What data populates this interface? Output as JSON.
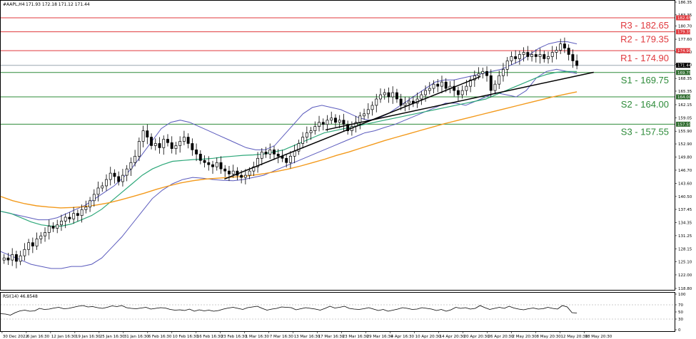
{
  "header": {
    "symbol": "#AAPL,H4",
    "ohlc": "171.93 172.18 171.12 171.44"
  },
  "rsi_header": "RSI(14) 46.8548",
  "colors": {
    "resistance": "#e0393e",
    "support": "#2e8b3a",
    "bollinger": "#5b5bbd",
    "ma_green": "#2ea87a",
    "ma_orange": "#f39a1c",
    "candle": "#000000",
    "trendline": "#000000",
    "rsi_line": "#000000",
    "axis_tag_red": "#e0393e",
    "axis_tag_green": "#2e6b2e",
    "axis_tag_black": "#000000"
  },
  "chart_data": {
    "type": "candlestick",
    "ylim": [
      118.8,
      186.35
    ],
    "y_ticks": [
      "186.35",
      "183.35",
      "180.70",
      "177.60",
      "174.60",
      "171.60",
      "168.35",
      "165.35",
      "162.15",
      "159.05",
      "155.90",
      "152.90",
      "149.80",
      "146.70",
      "143.60",
      "140.50",
      "137.45",
      "134.35",
      "131.25",
      "128.15",
      "125.10",
      "122.00",
      "118.80"
    ],
    "x_ticks": [
      "30 Dec 2022",
      "6 Jan 16:30",
      "12 Jan 16:30",
      "19 Jan 16:30",
      "25 Jan 16:30",
      "31 Jan 16:30",
      "6 Feb 16:30",
      "10 Feb 16:30",
      "16 Feb 16:30",
      "23 Feb 16:30",
      "1 Mar 16:30",
      "7 Mar 16:30",
      "13 Mar 16:30",
      "17 Mar 16:30",
      "23 Mar 16:30",
      "29 Mar 16:30",
      "4 Apr 16:30",
      "10 Apr 20:30",
      "14 Apr 20:30",
      "20 Apr 20:30",
      "26 Apr 20:30",
      "2 May 20:30",
      "8 May 20:30",
      "12 May 20:30",
      "18 May 20:30"
    ],
    "levels": [
      {
        "name": "R3",
        "text": "R3 - 182.65",
        "value": 182.65,
        "tag": "182.65",
        "kind": "resistance"
      },
      {
        "name": "R2",
        "text": "R2 - 179.35",
        "value": 179.35,
        "tag": "179.35",
        "kind": "resistance"
      },
      {
        "name": "R1",
        "text": "R1 - 174.90",
        "value": 174.9,
        "tag": "174.90",
        "kind": "resistance"
      },
      {
        "name": "S1",
        "text": "S1 - 169.75",
        "value": 169.75,
        "tag": "169.75",
        "kind": "support"
      },
      {
        "name": "S2",
        "text": "S2 - 164.00",
        "value": 164.0,
        "tag": "164.00",
        "kind": "support"
      },
      {
        "name": "S3",
        "text": "S3 - 157.55",
        "value": 157.55,
        "tag": "157.55",
        "kind": "support"
      }
    ],
    "current_price": {
      "value": 171.44,
      "tag": "171.44"
    },
    "close_series": [
      126.0,
      125.5,
      126.8,
      125.2,
      126.5,
      128.0,
      129.6,
      128.8,
      130.5,
      131.2,
      132.0,
      133.5,
      133.0,
      133.8,
      134.7,
      135.6,
      135.2,
      136.5,
      136.0,
      137.4,
      138.0,
      139.5,
      141.0,
      142.5,
      143.0,
      144.5,
      146.0,
      145.2,
      144.0,
      145.5,
      147.0,
      148.5,
      150.0,
      153.5,
      156.0,
      154.5,
      152.5,
      153.0,
      152.0,
      154.0,
      153.2,
      151.8,
      152.5,
      153.5,
      154.5,
      153.0,
      151.5,
      150.5,
      149.0,
      148.5,
      148.0,
      147.5,
      148.5,
      147.0,
      146.5,
      145.8,
      146.5,
      145.5,
      145.0,
      145.5,
      146.5,
      147.5,
      149.5,
      151.0,
      150.5,
      151.5,
      150.5,
      150.0,
      149.5,
      148.5,
      150.0,
      151.2,
      153.0,
      154.5,
      155.5,
      156.0,
      157.0,
      158.0,
      157.5,
      158.5,
      159.0,
      158.0,
      158.5,
      157.5,
      156.0,
      157.0,
      158.0,
      159.5,
      160.0,
      161.0,
      162.0,
      163.5,
      164.5,
      165.0,
      164.0,
      165.0,
      163.5,
      162.0,
      162.5,
      163.0,
      162.5,
      163.5,
      164.5,
      165.5,
      166.0,
      167.0,
      166.5,
      167.5,
      166.0,
      166.5,
      165.5,
      164.5,
      165.5,
      166.5,
      168.0,
      169.0,
      169.5,
      170.0,
      169.0,
      165.5,
      167.0,
      169.0,
      170.5,
      172.5,
      173.5,
      173.0,
      174.0,
      174.5,
      173.5,
      174.0,
      173.5,
      174.0,
      173.0,
      173.5,
      174.5,
      175.0,
      176.5,
      175.5,
      174.0,
      172.5,
      171.4
    ],
    "bollinger_upper": [
      137.0,
      136.5,
      136.0,
      135.5,
      135.0,
      135.0,
      135.5,
      136.5,
      137.5,
      138.5,
      140.0,
      141.5,
      143.0,
      145.0,
      147.5,
      150.5,
      153.5,
      156.5,
      158.0,
      158.5,
      158.0,
      157.0,
      156.0,
      155.0,
      154.0,
      153.0,
      152.0,
      151.5,
      151.5,
      152.5,
      155.0,
      157.5,
      160.0,
      161.5,
      162.0,
      161.5,
      161.0,
      160.0,
      159.0,
      158.5,
      159.0,
      160.0,
      161.5,
      163.0,
      164.5,
      166.0,
      167.5,
      168.0,
      168.0,
      168.5,
      169.0,
      169.5,
      170.0,
      170.5,
      171.5,
      172.5,
      174.0,
      175.5,
      176.5,
      177.0,
      177.0,
      176.5
    ],
    "bollinger_lower": [
      127.5,
      126.5,
      125.5,
      124.5,
      124.0,
      123.5,
      123.5,
      124.0,
      124.0,
      124.5,
      126.0,
      128.5,
      131.0,
      134.0,
      137.0,
      140.0,
      142.0,
      143.5,
      144.5,
      145.0,
      144.8,
      144.5,
      144.3,
      144.2,
      144.5,
      145.0,
      145.5,
      146.5,
      147.5,
      148.5,
      149.5,
      150.5,
      151.5,
      152.5,
      153.5,
      154.5,
      155.5,
      156.0,
      156.8,
      157.5,
      158.5,
      159.5,
      160.5,
      161.5,
      162.5,
      162.5,
      162.0,
      163.0,
      164.0,
      165.0,
      164.5,
      164.0,
      165.5,
      168.5,
      170.0,
      170.5,
      170.0,
      169.5
    ],
    "ma_green": [
      137.0,
      136.5,
      135.5,
      134.5,
      133.8,
      133.5,
      133.5,
      134.0,
      135.0,
      136.0,
      137.5,
      139.5,
      141.5,
      143.5,
      145.5,
      147.0,
      148.0,
      148.8,
      149.0,
      149.2,
      149.3,
      149.5,
      149.8,
      150.0,
      150.2,
      150.3,
      150.5,
      151.0,
      151.5,
      152.5,
      153.5,
      154.5,
      155.5,
      156.0,
      156.5,
      157.0,
      157.5,
      158.0,
      158.5,
      159.0,
      159.5,
      160.0,
      160.5,
      161.0,
      161.5,
      162.0,
      162.5,
      163.0,
      163.5,
      164.5,
      165.5,
      166.5,
      167.5,
      168.5,
      169.3,
      169.8,
      170.0,
      170.0
    ],
    "ma_orange": [
      140.5,
      139.5,
      138.8,
      138.3,
      138.0,
      137.8,
      137.9,
      138.1,
      138.5,
      139.0,
      139.7,
      140.5,
      141.3,
      142.2,
      143.0,
      143.7,
      144.2,
      144.6,
      144.8,
      145.0,
      145.2,
      145.5,
      145.9,
      146.4,
      147.0,
      147.7,
      148.5,
      149.3,
      150.2,
      151.0,
      151.9,
      152.8,
      153.7,
      154.5,
      155.3,
      156.1,
      156.9,
      157.7,
      158.4,
      159.1,
      159.8,
      160.5,
      161.2,
      161.9,
      162.6,
      163.3,
      164.0,
      164.6,
      165.2
    ],
    "trendlines": [
      {
        "from": [
          0.332,
          144.6
        ],
        "to": [
          0.712,
          168.8
        ]
      },
      {
        "from": [
          0.482,
          156.2
        ],
        "to": [
          0.88,
          169.8
        ]
      }
    ],
    "rsi": {
      "ylim": [
        0,
        100
      ],
      "ticks": [
        "100",
        "70",
        "50",
        "30",
        "0"
      ],
      "values": [
        45,
        44,
        41,
        48,
        53,
        55,
        52,
        53,
        60,
        57,
        58,
        61,
        63,
        59,
        60,
        63,
        66,
        68,
        64,
        65,
        62,
        60,
        63,
        67,
        65,
        68,
        62,
        60,
        59,
        61,
        63,
        58,
        60,
        62,
        61,
        57,
        55,
        56,
        54,
        58,
        52,
        56,
        53,
        55,
        52,
        54,
        58,
        61,
        63,
        60,
        57,
        62,
        64,
        66,
        60,
        55,
        58,
        60,
        64,
        63,
        62,
        56,
        59,
        62,
        60,
        58,
        55,
        60,
        66,
        61,
        63,
        66,
        60,
        58,
        57,
        59,
        62,
        58,
        54,
        57,
        52,
        55,
        58,
        62,
        60,
        57,
        58,
        62,
        60,
        58,
        54,
        57,
        52,
        56,
        63,
        60,
        62,
        58,
        60,
        68,
        62,
        57,
        60,
        63,
        60,
        66,
        61,
        58,
        56,
        59,
        61,
        58,
        59,
        63,
        60,
        58,
        68,
        64,
        48,
        47
      ]
    }
  }
}
